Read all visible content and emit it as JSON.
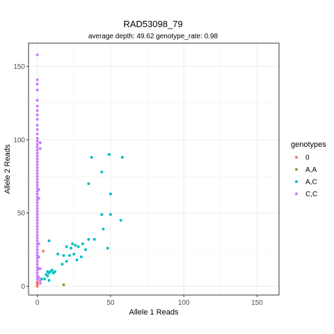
{
  "chart_data": {
    "type": "scatter",
    "title": "RAD53098_79",
    "subtitle": "average depth:  49.62  genotype_rate:  0.98",
    "xlabel": "Allele 1 Reads",
    "ylabel": "Allele 2 Reads",
    "xlim": [
      -6,
      165
    ],
    "ylim": [
      -6,
      166
    ],
    "x_ticks": [
      0,
      50,
      100,
      150
    ],
    "y_ticks": [
      0,
      50,
      100,
      150
    ],
    "x_tick_labels": [
      "0",
      "50",
      "100",
      "150"
    ],
    "y_tick_labels": [
      "0",
      "50",
      "100",
      "150"
    ],
    "grid": true,
    "legend_title": "genotypes",
    "legend_position": "right",
    "series": [
      {
        "name": "0",
        "color": "#F8766D",
        "points": [
          [
            0,
            0
          ],
          [
            0,
            1
          ],
          [
            0,
            2
          ],
          [
            0,
            3
          ],
          [
            4,
            24
          ]
        ]
      },
      {
        "name": "A,A",
        "color": "#7CAE00",
        "points": [
          [
            18,
            1
          ]
        ]
      },
      {
        "name": "A,C",
        "color": "#00BFC4",
        "points": [
          [
            3,
            5
          ],
          [
            5,
            5
          ],
          [
            6,
            8
          ],
          [
            7,
            7
          ],
          [
            7,
            10
          ],
          [
            8,
            4
          ],
          [
            8,
            9
          ],
          [
            9,
            10
          ],
          [
            10,
            11
          ],
          [
            11,
            9
          ],
          [
            12,
            10
          ],
          [
            8,
            31
          ],
          [
            14,
            22
          ],
          [
            17,
            15
          ],
          [
            18,
            21
          ],
          [
            20,
            17
          ],
          [
            20,
            27
          ],
          [
            22,
            21
          ],
          [
            23,
            26
          ],
          [
            24,
            29
          ],
          [
            25,
            22
          ],
          [
            26,
            28
          ],
          [
            27,
            18
          ],
          [
            28,
            27
          ],
          [
            30,
            20
          ],
          [
            31,
            29
          ],
          [
            33,
            25
          ],
          [
            35,
            32
          ],
          [
            35,
            70
          ],
          [
            37,
            88
          ],
          [
            39,
            32
          ],
          [
            44,
            78
          ],
          [
            44,
            49
          ],
          [
            45,
            39
          ],
          [
            48,
            26
          ],
          [
            49,
            90
          ],
          [
            50,
            49
          ],
          [
            50,
            63
          ],
          [
            57,
            45
          ],
          [
            58,
            88
          ]
        ]
      },
      {
        "name": "C,C",
        "color": "#C77CFF",
        "points": [
          [
            0,
            158
          ],
          [
            0,
            141
          ],
          [
            0,
            138
          ],
          [
            0,
            134
          ],
          [
            0,
            127
          ],
          [
            0,
            123
          ],
          [
            0,
            120
          ],
          [
            0,
            117
          ],
          [
            0,
            114
          ],
          [
            0,
            110
          ],
          [
            0,
            107
          ],
          [
            0,
            104
          ],
          [
            0,
            101
          ],
          [
            0,
            99
          ],
          [
            0,
            97
          ],
          [
            0,
            95
          ],
          [
            0,
            93
          ],
          [
            0,
            91
          ],
          [
            0,
            89
          ],
          [
            0,
            87
          ],
          [
            0,
            85
          ],
          [
            0,
            83
          ],
          [
            0,
            81
          ],
          [
            0,
            79
          ],
          [
            0,
            77
          ],
          [
            0,
            75
          ],
          [
            0,
            73
          ],
          [
            0,
            71
          ],
          [
            0,
            69
          ],
          [
            0,
            67
          ],
          [
            0,
            65
          ],
          [
            0,
            63
          ],
          [
            0,
            61
          ],
          [
            0,
            59
          ],
          [
            0,
            57
          ],
          [
            0,
            55
          ],
          [
            0,
            53
          ],
          [
            0,
            51
          ],
          [
            0,
            49
          ],
          [
            0,
            47
          ],
          [
            0,
            45
          ],
          [
            0,
            43
          ],
          [
            0,
            41
          ],
          [
            0,
            39
          ],
          [
            0,
            37
          ],
          [
            0,
            35
          ],
          [
            0,
            33
          ],
          [
            0,
            31
          ],
          [
            0,
            29
          ],
          [
            0,
            27
          ],
          [
            0,
            25
          ],
          [
            0,
            23
          ],
          [
            0,
            21
          ],
          [
            0,
            19
          ],
          [
            0,
            17
          ],
          [
            0,
            15
          ],
          [
            0,
            13
          ],
          [
            0,
            11
          ],
          [
            0,
            9
          ],
          [
            0,
            7
          ],
          [
            0,
            5
          ],
          [
            1,
            66
          ],
          [
            1,
            60
          ],
          [
            1,
            29
          ],
          [
            1,
            20
          ],
          [
            1,
            12
          ],
          [
            1,
            6
          ],
          [
            2,
            98
          ],
          [
            2,
            94
          ],
          [
            2,
            12
          ],
          [
            2,
            4
          ],
          [
            2,
            2
          ]
        ]
      }
    ]
  }
}
